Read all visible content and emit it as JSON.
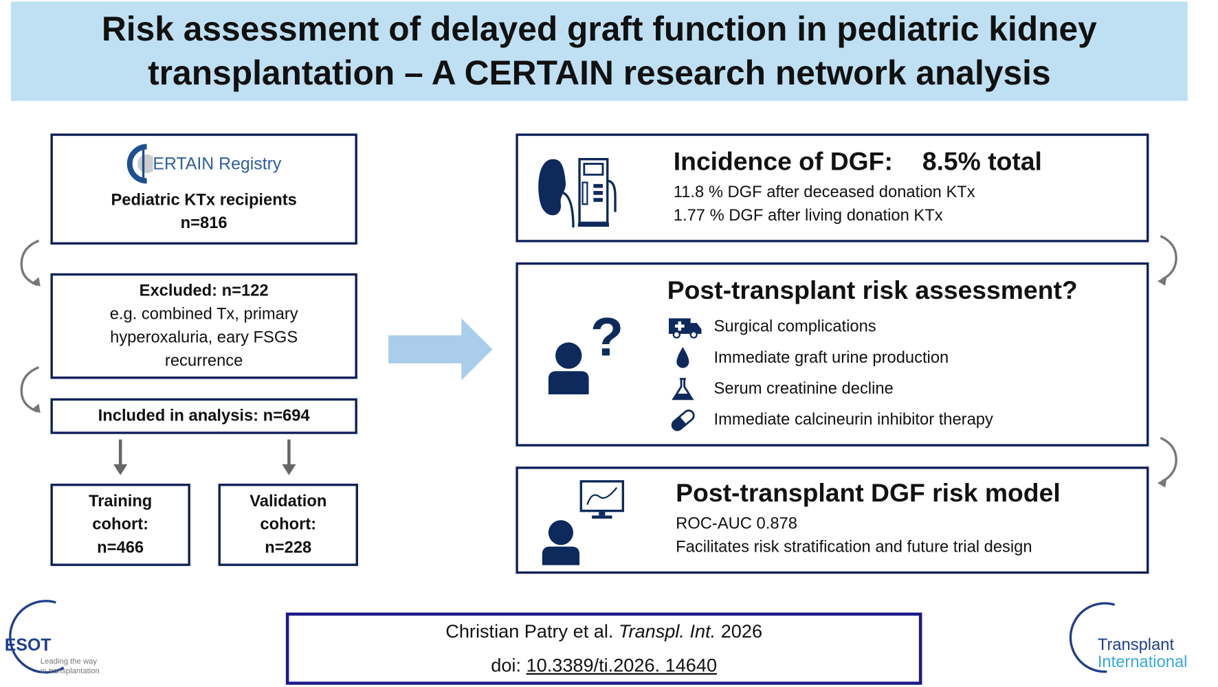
{
  "title": "Risk assessment of delayed graft function in pediatric kidney transplantation – A CERTAIN research network analysis",
  "left_flow": {
    "registry_logo": "CERTAIN Registry",
    "registry_logo_text": "ERTAIN Registry",
    "recipients_label": "Pediatric KTx recipients",
    "recipients_n": "n=816",
    "excluded_label": "Excluded: n=122",
    "excluded_detail": "e.g. combined Tx, primary hyperoxaluria, eary FSGS recurrence",
    "included_label": "Included in analysis: n=694",
    "training": {
      "line1": "Training",
      "line2": "cohort:",
      "line3": "n=466"
    },
    "validation": {
      "line1": "Validation",
      "line2": "cohort:",
      "line3": "n=228"
    }
  },
  "incidence": {
    "heading": "Incidence of DGF:",
    "total": "8.5% total",
    "line1": "11.8 % DGF after deceased donation KTx",
    "line2": "1.77 % DGF after living donation KTx",
    "icons": [
      "kidney-icon",
      "dialysis-machine-icon"
    ]
  },
  "risk_assessment": {
    "heading": "Post-transplant risk assessment?",
    "items": [
      {
        "icon": "ambulance-icon",
        "label": "Surgical complications"
      },
      {
        "icon": "drop-icon",
        "label": "Immediate graft urine production"
      },
      {
        "icon": "flask-icon",
        "label": "Serum creatinine decline"
      },
      {
        "icon": "pill-icon",
        "label": "Immediate calcineurin inhibitor therapy"
      }
    ]
  },
  "model": {
    "heading": "Post-transplant DGF risk model",
    "line1": "ROC-AUC 0.878",
    "line2": "Facilitates risk stratification and future trial design"
  },
  "citation": {
    "authors": "Christian Patry et al. ",
    "journal": "Transpl. Int.",
    "year": " 2026",
    "doi_prefix": "doi: ",
    "doi": "10.3389/ti.2026. 14640"
  },
  "logos": {
    "esot": "ESOT",
    "esot_tag1": "Leading the way",
    "esot_tag2": "in transplantation",
    "ti_line1": "Transplant",
    "ti_line2": "International"
  },
  "colors": {
    "navy": "#0e1f5a",
    "title_bg": "#bfe0f3",
    "arrow": "#a9cdea",
    "icon": "#0e2a5c"
  }
}
